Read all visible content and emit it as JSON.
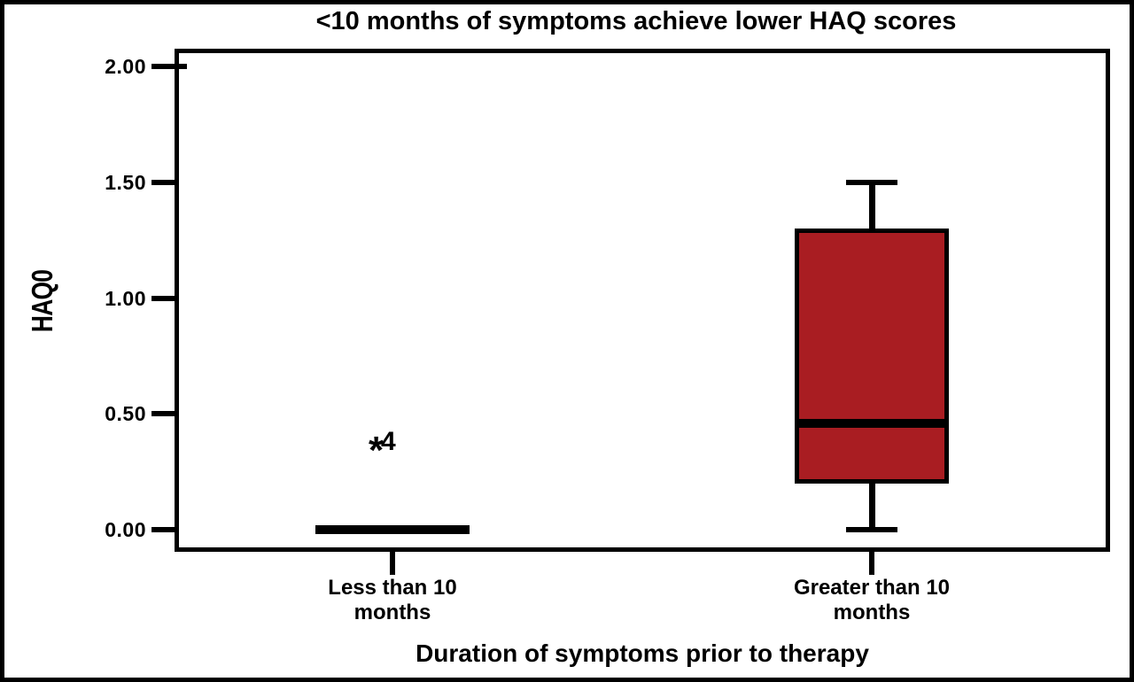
{
  "chart": {
    "title": "<10 months of symptoms achieve lower HAQ scores",
    "y_axis_label": "HAQ0",
    "x_axis_title": "Duration of symptoms prior to therapy"
  },
  "chart_data": {
    "type": "boxplot",
    "title": "<10 months of symptoms achieve lower HAQ scores",
    "xlabel": "Duration of symptoms prior to therapy",
    "ylabel": "HAQ0",
    "ylim": [
      0,
      2.0
    ],
    "grid": false,
    "legend": false,
    "y_ticks": [
      {
        "value": 0.0,
        "label": "0.00"
      },
      {
        "value": 0.5,
        "label": "0.50"
      },
      {
        "value": 1.0,
        "label": "1.00"
      },
      {
        "value": 1.5,
        "label": "1.50"
      },
      {
        "value": 2.0,
        "label": "2.00"
      }
    ],
    "categories": [
      "Less than 10 months",
      "Greater than 10 months"
    ],
    "category_label_lines": [
      [
        "Less than 10",
        "months"
      ],
      [
        "Greater than 10",
        "months"
      ]
    ],
    "series": [
      {
        "name": "Less than 10 months",
        "whisker_low": 0.0,
        "q1": 0.0,
        "median": 0.0,
        "q3": 0.0,
        "whisker_high": 0.0,
        "outliers": [
          {
            "value": 0.37,
            "label": "4",
            "marker": "*"
          }
        ]
      },
      {
        "name": "Greater than 10 months",
        "whisker_low": 0.0,
        "q1": 0.2,
        "median": 0.46,
        "q3": 1.3,
        "whisker_high": 1.5,
        "outliers": []
      }
    ],
    "colors": {
      "box_fill": "#a91d22",
      "line": "#000000",
      "background": "#ffffff"
    }
  }
}
